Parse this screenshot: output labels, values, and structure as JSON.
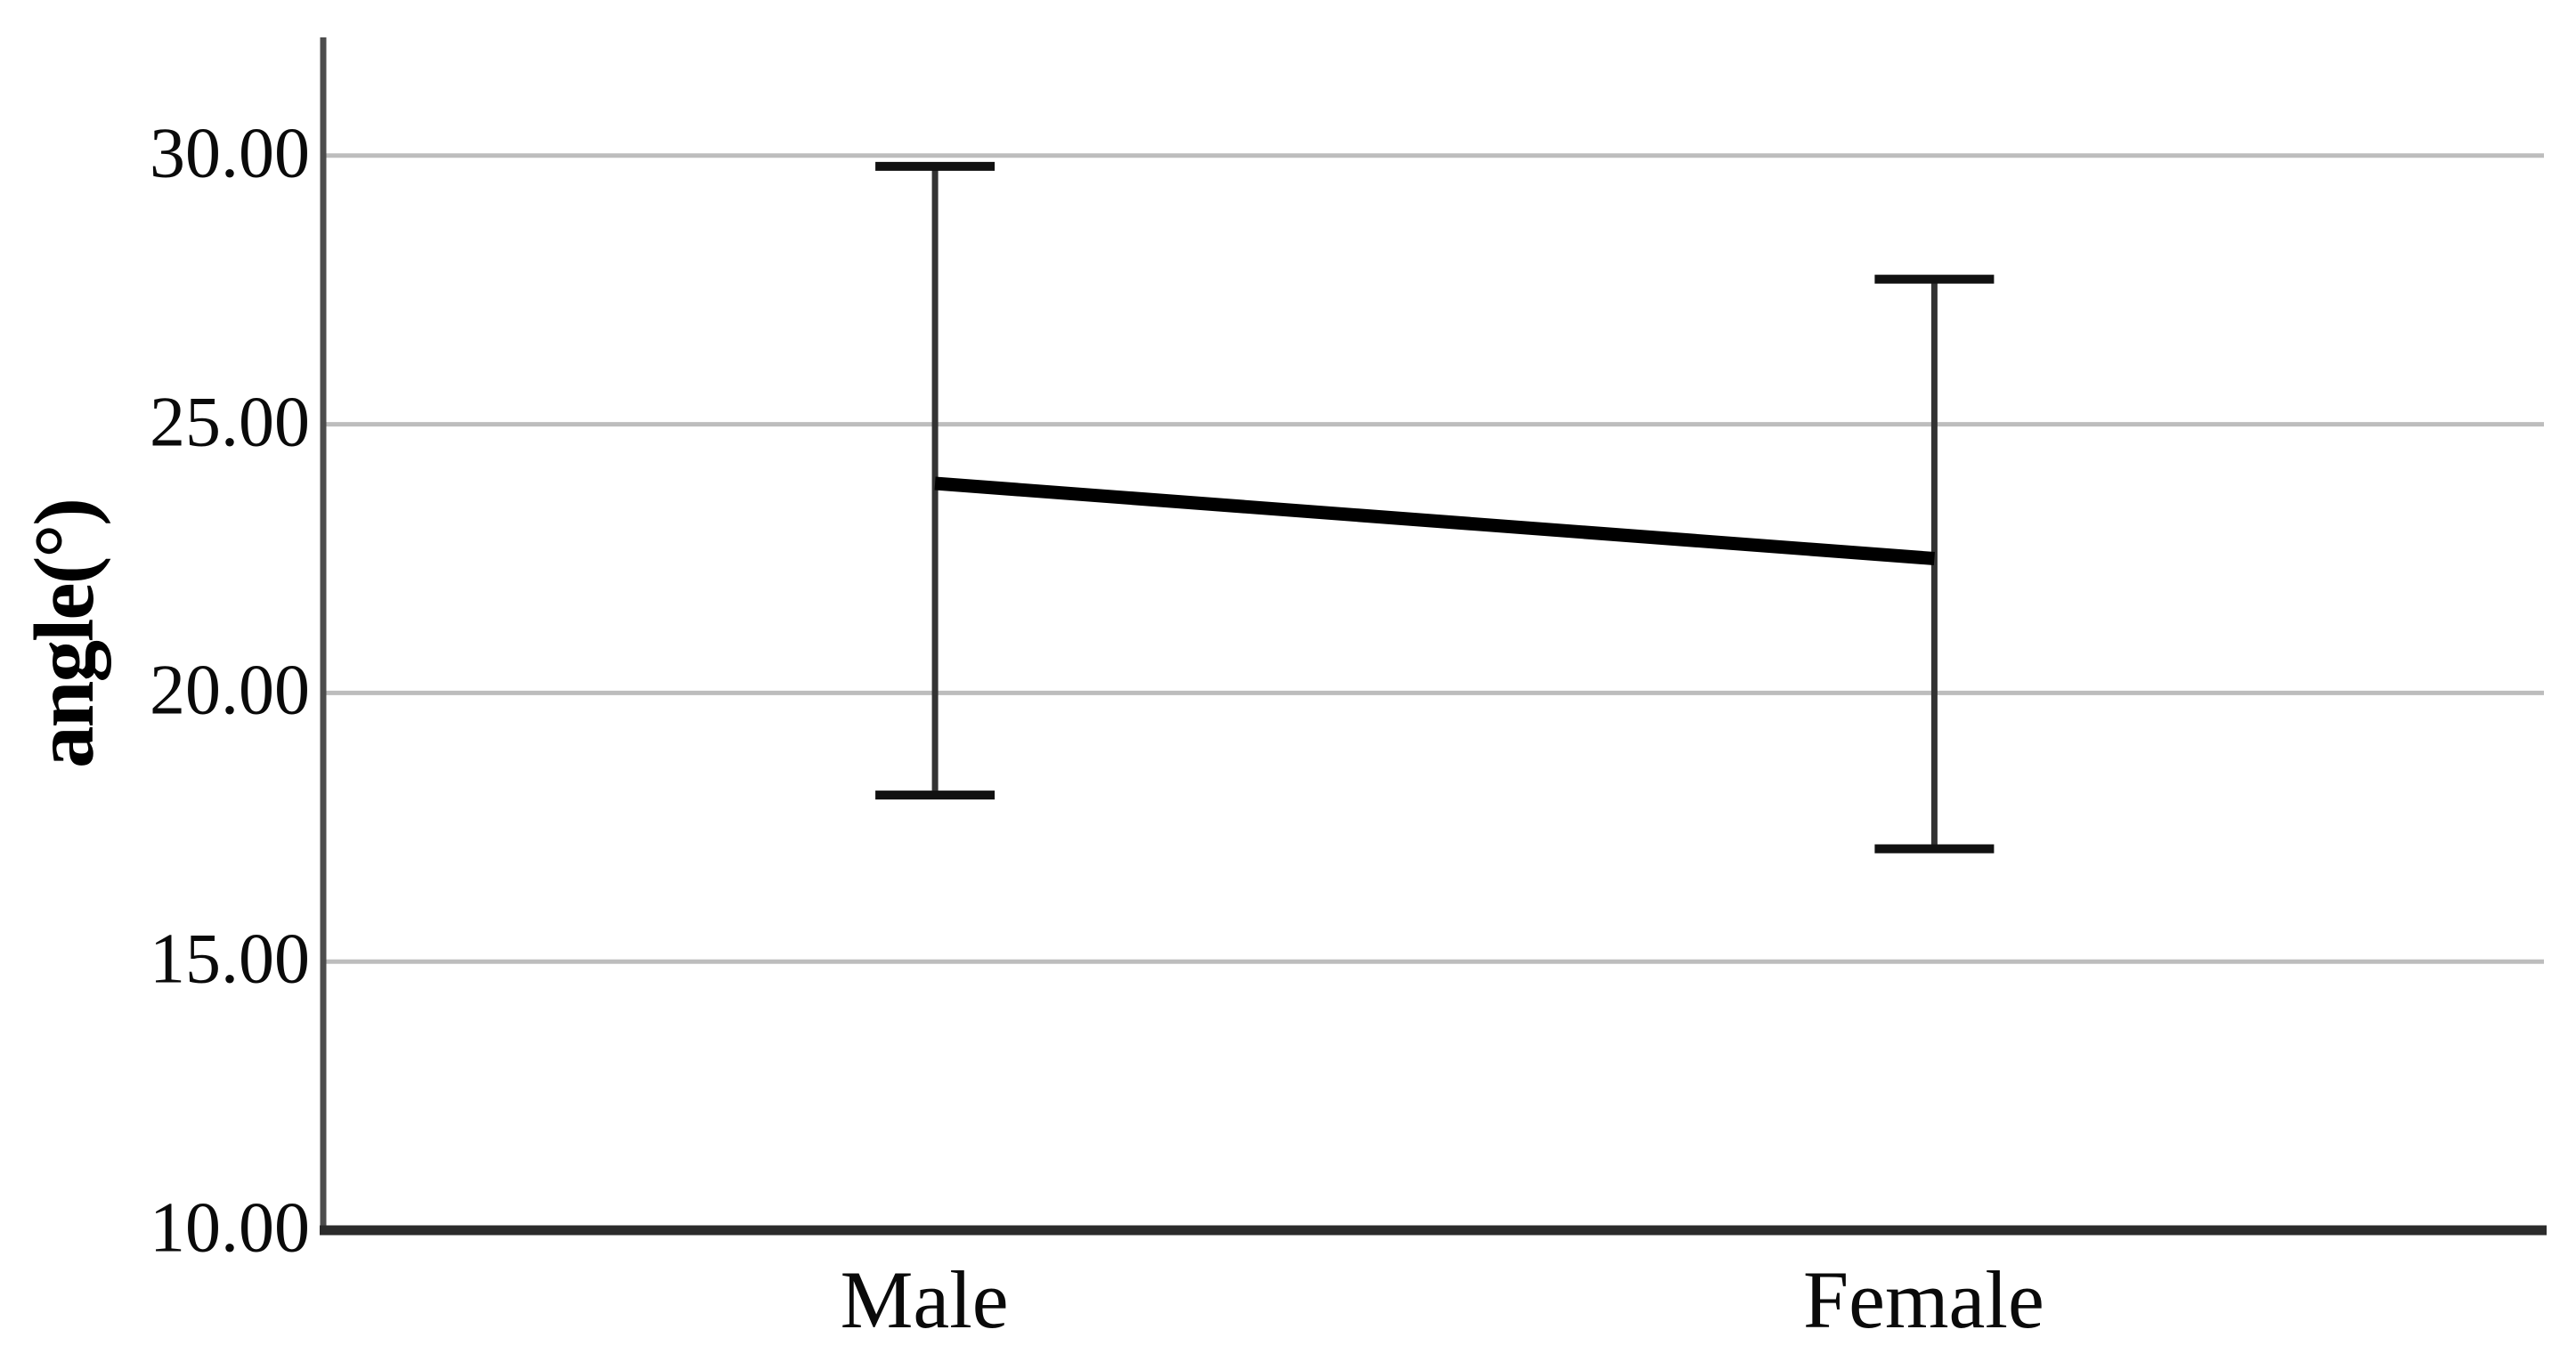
{
  "chart_data": {
    "type": "line",
    "subtype": "means-with-error-bars",
    "title": "",
    "xlabel": "",
    "ylabel": "angle(°)",
    "categories": [
      "Male",
      "Female"
    ],
    "series": [
      {
        "name": "mean",
        "values": [
          23.9,
          22.5
        ]
      },
      {
        "name": "error_upper",
        "values": [
          29.8,
          27.7
        ]
      },
      {
        "name": "error_lower",
        "values": [
          18.1,
          17.1
        ]
      }
    ],
    "yticks": [
      {
        "value": 30,
        "label": "30.00"
      },
      {
        "value": 25,
        "label": "25.00"
      },
      {
        "value": 20,
        "label": "20.00"
      },
      {
        "value": 15,
        "label": "15.00"
      },
      {
        "value": 10,
        "label": "10.00"
      }
    ],
    "ylim": [
      10,
      32.2
    ],
    "grid": true,
    "legend": false,
    "colors": {
      "background": "#ffffff",
      "gridline": "#bdbdbd",
      "y_axis": "#4d4d4d",
      "x_axis": "#2b2b2b",
      "error_bar_line": "#333333",
      "error_bar_cap": "#111111",
      "mean_line": "#000000",
      "text": "#000000"
    }
  }
}
